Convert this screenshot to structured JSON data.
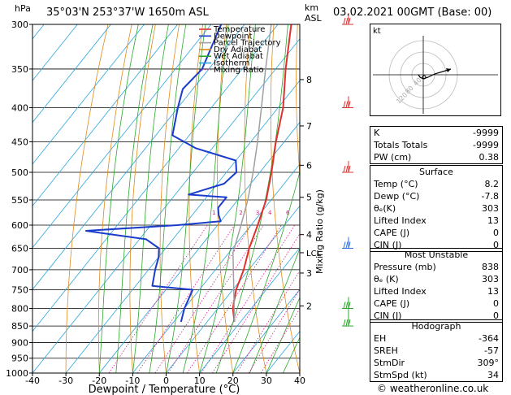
{
  "header": {
    "hpa_unit": "hPa",
    "location": "35°03'N  253°37'W  1650m  ASL",
    "km_unit": "km",
    "asl_unit": "ASL",
    "datetime": "03.02.2021  00GMT  (Base: 00)"
  },
  "colors": {
    "temperature": "#e03030",
    "dewpoint": "#1a3ccc",
    "parcel": "#a0a0a0",
    "dry_adiabat": "#e08a1a",
    "wet_adiabat": "#2aa82a",
    "isotherm": "#2aa5e0",
    "mixing_ratio": "#d0208a",
    "wind_barb_upper": "#e03030",
    "wind_barb_mid": "#3070e0",
    "wind_barb_low": "#2aa82a"
  },
  "legend": {
    "items": [
      {
        "label": "Temperature",
        "color": "#e03030",
        "style": "solid"
      },
      {
        "label": "Dewpoint",
        "color": "#1a3ccc",
        "style": "solid"
      },
      {
        "label": "Parcel Trajectory",
        "color": "#a0a0a0",
        "style": "solid"
      },
      {
        "label": "Dry Adiabat",
        "color": "#e08a1a",
        "style": "solid"
      },
      {
        "label": "Wet Adiabat",
        "color": "#2aa82a",
        "style": "solid"
      },
      {
        "label": "Isotherm",
        "color": "#2aa5e0",
        "style": "solid"
      },
      {
        "label": "Mixing Ratio",
        "color": "#d0208a",
        "style": "dotted"
      }
    ]
  },
  "chart_data": {
    "type": "line",
    "xlabel": "Dewpoint / Temperature (°C)",
    "ylabel": "Mixing Ratio (g/kg)",
    "y_unit": "hPa",
    "xlim": [
      -40,
      40
    ],
    "ylim": [
      1000,
      300
    ],
    "y_scale": "log",
    "x_ticks": [
      -40,
      -30,
      -20,
      -10,
      0,
      10,
      20,
      30,
      40
    ],
    "pressure_levels": [
      300,
      350,
      400,
      450,
      500,
      550,
      600,
      650,
      700,
      750,
      800,
      850,
      900,
      950,
      1000
    ],
    "km_ticks": [
      {
        "label": "8",
        "p": 363
      },
      {
        "label": "7",
        "p": 426
      },
      {
        "label": "6",
        "p": 488
      },
      {
        "label": "5",
        "p": 545
      },
      {
        "label": "4",
        "p": 620
      },
      {
        "label": "3",
        "p": 708
      },
      {
        "label": "2",
        "p": 793
      }
    ],
    "lcl_label": "LCL",
    "lcl_p": 660,
    "mixing_ratio_labels": [
      "1",
      "2",
      "3",
      "4",
      "6",
      "8",
      "10",
      "16",
      "20",
      "25"
    ],
    "mixing_ratio_label_p": 580,
    "series": [
      {
        "name": "Temperature",
        "points": [
          {
            "p": 838,
            "t": 8.2
          },
          {
            "p": 800,
            "t": 4.5
          },
          {
            "p": 750,
            "t": 1.0
          },
          {
            "p": 700,
            "t": -1.5
          },
          {
            "p": 650,
            "t": -5.0
          },
          {
            "p": 600,
            "t": -8.0
          },
          {
            "p": 550,
            "t": -11.5
          },
          {
            "p": 500,
            "t": -16.5
          },
          {
            "p": 450,
            "t": -22.5
          },
          {
            "p": 400,
            "t": -28.5
          },
          {
            "p": 350,
            "t": -37.0
          },
          {
            "p": 300,
            "t": -46.0
          }
        ]
      },
      {
        "name": "Dewpoint",
        "points": [
          {
            "p": 838,
            "t": -7.8
          },
          {
            "p": 800,
            "t": -10.0
          },
          {
            "p": 750,
            "t": -12.0
          },
          {
            "p": 740,
            "t": -25.0
          },
          {
            "p": 700,
            "t": -28.0
          },
          {
            "p": 670,
            "t": -30.0
          },
          {
            "p": 650,
            "t": -32.0
          },
          {
            "p": 630,
            "t": -38.0
          },
          {
            "p": 612,
            "t": -58.0
          },
          {
            "p": 600,
            "t": -32.0
          },
          {
            "p": 592,
            "t": -20.0
          },
          {
            "p": 580,
            "t": -22.0
          },
          {
            "p": 565,
            "t": -24.0
          },
          {
            "p": 545,
            "t": -24.0
          },
          {
            "p": 540,
            "t": -36.0
          },
          {
            "p": 520,
            "t": -28.0
          },
          {
            "p": 500,
            "t": -27.0
          },
          {
            "p": 480,
            "t": -30.0
          },
          {
            "p": 460,
            "t": -45.0
          },
          {
            "p": 440,
            "t": -55.0
          },
          {
            "p": 400,
            "t": -60.0
          },
          {
            "p": 375,
            "t": -63.0
          },
          {
            "p": 350,
            "t": -62.0
          },
          {
            "p": 300,
            "t": -67.0
          }
        ]
      },
      {
        "name": "Parcel Trajectory",
        "points": [
          {
            "p": 838,
            "t": 8.2
          },
          {
            "p": 660,
            "t": -8.8
          },
          {
            "p": 600,
            "t": -13.0
          },
          {
            "p": 550,
            "t": -17.0
          },
          {
            "p": 500,
            "t": -22.0
          },
          {
            "p": 450,
            "t": -28.0
          },
          {
            "p": 400,
            "t": -35.0
          },
          {
            "p": 350,
            "t": -43.0
          },
          {
            "p": 300,
            "t": -52.0
          }
        ]
      }
    ]
  },
  "winds": [
    {
      "p": 300,
      "color": "#e03030"
    },
    {
      "p": 400,
      "color": "#e03030"
    },
    {
      "p": 500,
      "color": "#e03030"
    },
    {
      "p": 650,
      "color": "#3070e0"
    },
    {
      "p": 800,
      "color": "#2aa82a"
    },
    {
      "p": 850,
      "color": "#2aa82a"
    }
  ],
  "hodograph": {
    "label": "kt",
    "ring_labels": [
      "40",
      "80",
      "120"
    ]
  },
  "indices": {
    "k_label": "K",
    "k_value": "-9999",
    "tt_label": "Totals Totals",
    "tt_value": "-9999",
    "pw_label": "PW (cm)",
    "pw_value": "0.38"
  },
  "surface": {
    "title": "Surface",
    "rows": [
      {
        "label": "Temp (°C)",
        "value": "8.2"
      },
      {
        "label": "Dewp (°C)",
        "value": "-7.8"
      },
      {
        "label": "θₑ(K)",
        "value": "303"
      },
      {
        "label": "Lifted Index",
        "value": "13"
      },
      {
        "label": "CAPE (J)",
        "value": "0"
      },
      {
        "label": "CIN (J)",
        "value": "0"
      }
    ]
  },
  "most_unstable": {
    "title": "Most Unstable",
    "rows": [
      {
        "label": "Pressure (mb)",
        "value": "838"
      },
      {
        "label": "θₑ (K)",
        "value": "303"
      },
      {
        "label": "Lifted Index",
        "value": "13"
      },
      {
        "label": "CAPE (J)",
        "value": "0"
      },
      {
        "label": "CIN (J)",
        "value": "0"
      }
    ]
  },
  "hodograph_table": {
    "title": "Hodograph",
    "rows": [
      {
        "label": "EH",
        "value": "-364"
      },
      {
        "label": "SREH",
        "value": "-57"
      },
      {
        "label": "StmDir",
        "value": "309°"
      },
      {
        "label": "StmSpd (kt)",
        "value": "34"
      }
    ]
  },
  "footer": {
    "copyright": "© weatheronline.co.uk"
  }
}
